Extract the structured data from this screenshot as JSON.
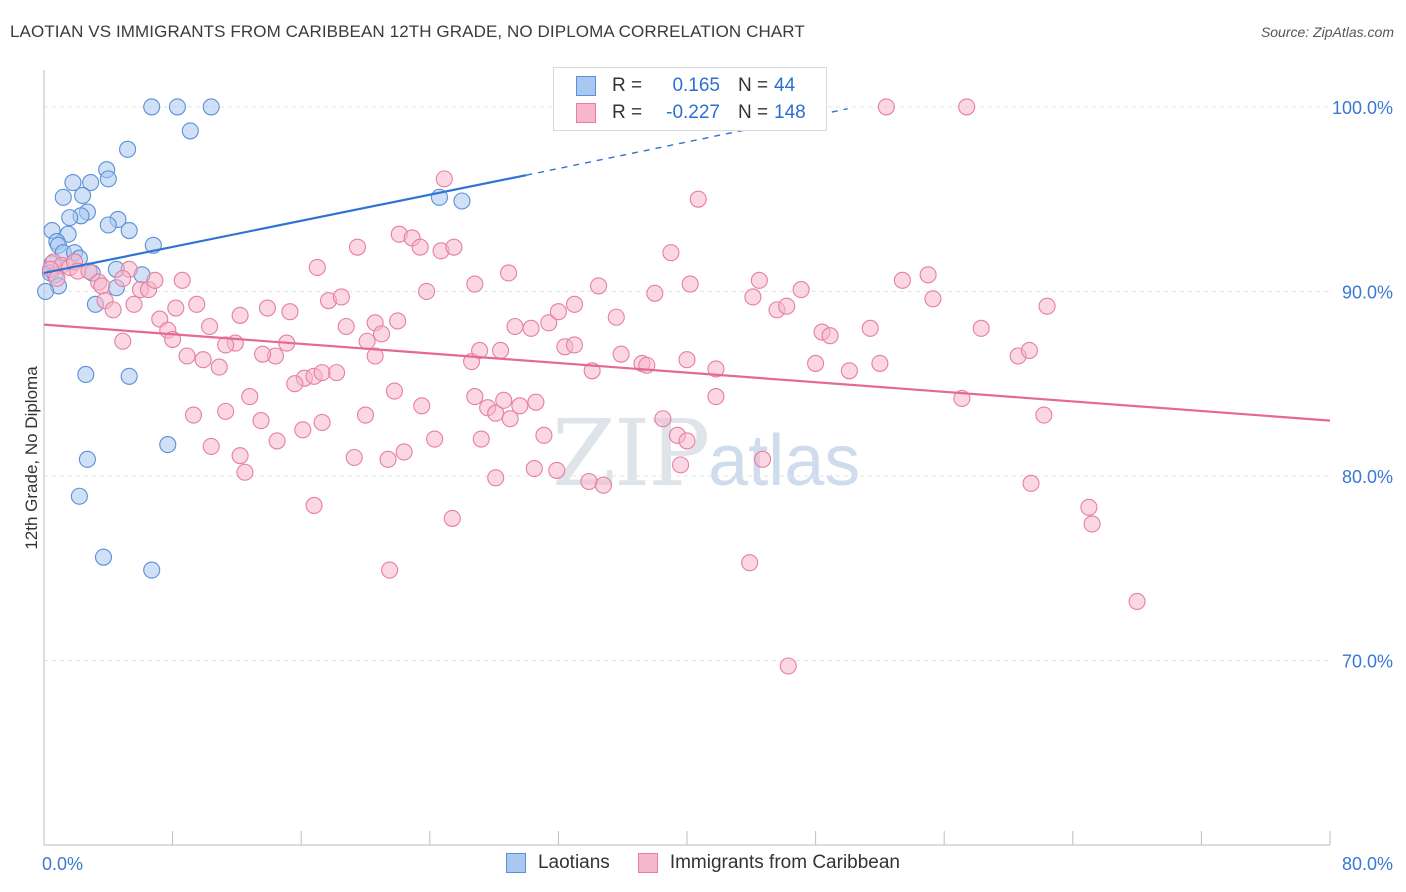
{
  "title": "LAOTIAN VS IMMIGRANTS FROM CARIBBEAN 12TH GRADE, NO DIPLOMA CORRELATION CHART",
  "source": "Source: ZipAtlas.com",
  "watermark": {
    "zip": "ZIP",
    "atlas": "atlas"
  },
  "legend_top": {
    "r_label": "R =",
    "n_label": "N =",
    "rows": [
      {
        "r": "0.165",
        "n": "44"
      },
      {
        "r": "-0.227",
        "n": "148"
      }
    ]
  },
  "colors": {
    "blue_fill": "#a9c8f0",
    "blue_stroke": "#5b8fd6",
    "blue_line": "#2f74d0",
    "pink_fill": "#f6b7cb",
    "pink_stroke": "#e67fa0",
    "pink_line": "#e46a93",
    "tick_text": "#3a78d4",
    "grid": "#e3e3e3"
  },
  "chart_data": {
    "type": "scatter",
    "title": "LAOTIAN VS IMMIGRANTS FROM CARIBBEAN 12TH GRADE, NO DIPLOMA CORRELATION CHART",
    "xlabel": "",
    "ylabel": "12th Grade, No Diploma",
    "xlim": [
      0,
      80
    ],
    "ylim": [
      60,
      102
    ],
    "x_tick_labels": [
      "0.0%",
      "80.0%"
    ],
    "y_ticks": [
      70,
      80,
      90,
      100
    ],
    "y_tick_labels": [
      "70.0%",
      "80.0%",
      "90.0%",
      "100.0%"
    ],
    "grid": true,
    "legend_position": "bottom",
    "series": [
      {
        "name": "Laotians",
        "r": 0.165,
        "n": 44,
        "trend": {
          "x0": 0,
          "y0": 91.0,
          "x1": 30,
          "y1": 96.3,
          "dashed_to_x": 50,
          "dashed_to_y": 99.9
        },
        "points": [
          [
            6.7,
            100
          ],
          [
            8.3,
            100
          ],
          [
            10.4,
            100
          ],
          [
            9.1,
            98.7
          ],
          [
            5.2,
            97.7
          ],
          [
            3.9,
            96.6
          ],
          [
            4.0,
            96.1
          ],
          [
            1.8,
            95.9
          ],
          [
            2.9,
            95.9
          ],
          [
            1.2,
            95.1
          ],
          [
            2.4,
            95.2
          ],
          [
            2.7,
            94.3
          ],
          [
            2.3,
            94.1
          ],
          [
            1.6,
            94.0
          ],
          [
            4.6,
            93.9
          ],
          [
            4.0,
            93.6
          ],
          [
            5.3,
            93.3
          ],
          [
            0.5,
            93.3
          ],
          [
            1.5,
            93.1
          ],
          [
            0.8,
            92.7
          ],
          [
            0.9,
            92.5
          ],
          [
            6.8,
            92.5
          ],
          [
            1.2,
            92.1
          ],
          [
            1.9,
            92.1
          ],
          [
            2.2,
            91.8
          ],
          [
            0.5,
            91.5
          ],
          [
            0.4,
            91.0
          ],
          [
            3.0,
            91.0
          ],
          [
            4.5,
            91.2
          ],
          [
            6.1,
            90.9
          ],
          [
            0.7,
            90.9
          ],
          [
            0.9,
            90.3
          ],
          [
            4.5,
            90.2
          ],
          [
            0.1,
            90.0
          ],
          [
            3.2,
            89.3
          ],
          [
            2.6,
            85.5
          ],
          [
            5.3,
            85.4
          ],
          [
            7.7,
            81.7
          ],
          [
            2.7,
            80.9
          ],
          [
            2.2,
            78.9
          ],
          [
            3.7,
            75.6
          ],
          [
            6.7,
            74.9
          ],
          [
            24.6,
            95.1
          ],
          [
            26.0,
            94.9
          ]
        ]
      },
      {
        "name": "Immigrants from Caribbean",
        "r": -0.227,
        "n": 148,
        "trend": {
          "x0": 0,
          "y0": 88.2,
          "x1": 80,
          "y1": 83.0
        },
        "points": [
          [
            52.4,
            100
          ],
          [
            57.4,
            100
          ],
          [
            24.9,
            96.1
          ],
          [
            40.7,
            95.0
          ],
          [
            0.6,
            91.6
          ],
          [
            1.1,
            91.4
          ],
          [
            1.6,
            91.3
          ],
          [
            0.4,
            91.2
          ],
          [
            1.9,
            91.6
          ],
          [
            2.1,
            91.1
          ],
          [
            2.8,
            91.1
          ],
          [
            0.8,
            90.7
          ],
          [
            3.4,
            90.5
          ],
          [
            3.6,
            90.3
          ],
          [
            5.3,
            91.2
          ],
          [
            4.9,
            90.7
          ],
          [
            6.0,
            90.1
          ],
          [
            6.5,
            90.1
          ],
          [
            6.9,
            90.6
          ],
          [
            8.6,
            90.6
          ],
          [
            3.8,
            89.5
          ],
          [
            4.3,
            89.0
          ],
          [
            5.6,
            89.3
          ],
          [
            8.2,
            89.1
          ],
          [
            9.5,
            89.3
          ],
          [
            7.2,
            88.5
          ],
          [
            7.7,
            87.9
          ],
          [
            10.3,
            88.1
          ],
          [
            12.2,
            88.7
          ],
          [
            13.9,
            89.1
          ],
          [
            15.3,
            88.9
          ],
          [
            17.7,
            89.5
          ],
          [
            18.5,
            89.7
          ],
          [
            11.9,
            87.2
          ],
          [
            8.0,
            87.4
          ],
          [
            4.9,
            87.3
          ],
          [
            8.9,
            86.5
          ],
          [
            9.9,
            86.3
          ],
          [
            10.9,
            85.9
          ],
          [
            11.3,
            87.1
          ],
          [
            14.4,
            86.5
          ],
          [
            15.1,
            87.2
          ],
          [
            16.2,
            85.3
          ],
          [
            15.6,
            85.0
          ],
          [
            16.8,
            85.4
          ],
          [
            17.3,
            85.6
          ],
          [
            18.2,
            85.6
          ],
          [
            18.8,
            88.1
          ],
          [
            20.6,
            88.3
          ],
          [
            21.0,
            87.7
          ],
          [
            20.1,
            87.3
          ],
          [
            20.6,
            86.5
          ],
          [
            22.0,
            88.4
          ],
          [
            22.1,
            93.1
          ],
          [
            22.9,
            92.9
          ],
          [
            23.4,
            92.4
          ],
          [
            24.7,
            92.2
          ],
          [
            25.5,
            92.4
          ],
          [
            23.8,
            90.0
          ],
          [
            17.0,
            91.3
          ],
          [
            19.5,
            92.4
          ],
          [
            26.8,
            90.4
          ],
          [
            28.9,
            91.0
          ],
          [
            31.4,
            88.3
          ],
          [
            32.0,
            88.9
          ],
          [
            33.0,
            89.3
          ],
          [
            34.5,
            90.3
          ],
          [
            35.6,
            88.6
          ],
          [
            35.9,
            86.6
          ],
          [
            37.2,
            86.1
          ],
          [
            37.5,
            86.0
          ],
          [
            38.0,
            89.9
          ],
          [
            39.0,
            92.1
          ],
          [
            40.0,
            86.3
          ],
          [
            40.2,
            90.4
          ],
          [
            41.8,
            85.8
          ],
          [
            44.1,
            89.7
          ],
          [
            44.5,
            90.6
          ],
          [
            45.6,
            89.0
          ],
          [
            46.2,
            89.2
          ],
          [
            47.1,
            90.1
          ],
          [
            48.0,
            86.1
          ],
          [
            48.4,
            87.8
          ],
          [
            48.9,
            87.6
          ],
          [
            50.1,
            85.7
          ],
          [
            51.4,
            88.0
          ],
          [
            52.0,
            86.1
          ],
          [
            53.4,
            90.6
          ],
          [
            55.0,
            90.9
          ],
          [
            55.3,
            89.6
          ],
          [
            57.1,
            84.2
          ],
          [
            58.3,
            88.0
          ],
          [
            60.6,
            86.5
          ],
          [
            61.3,
            86.8
          ],
          [
            62.4,
            89.2
          ],
          [
            62.2,
            83.3
          ],
          [
            29.3,
            88.1
          ],
          [
            30.3,
            88.0
          ],
          [
            28.4,
            86.8
          ],
          [
            32.4,
            87.0
          ],
          [
            30.6,
            84.0
          ],
          [
            33.0,
            87.1
          ],
          [
            34.1,
            85.7
          ],
          [
            26.6,
            86.2
          ],
          [
            27.1,
            86.8
          ],
          [
            26.8,
            84.3
          ],
          [
            27.6,
            83.7
          ],
          [
            28.1,
            83.4
          ],
          [
            28.6,
            84.1
          ],
          [
            29.0,
            83.1
          ],
          [
            29.6,
            83.8
          ],
          [
            27.2,
            82.0
          ],
          [
            31.1,
            82.2
          ],
          [
            30.5,
            80.4
          ],
          [
            31.9,
            80.3
          ],
          [
            33.9,
            79.7
          ],
          [
            34.8,
            79.5
          ],
          [
            38.5,
            83.1
          ],
          [
            39.4,
            82.2
          ],
          [
            39.6,
            80.6
          ],
          [
            40.0,
            81.9
          ],
          [
            41.8,
            84.3
          ],
          [
            20.0,
            83.3
          ],
          [
            21.8,
            84.6
          ],
          [
            23.5,
            83.8
          ],
          [
            24.3,
            82.0
          ],
          [
            22.4,
            81.3
          ],
          [
            21.4,
            80.9
          ],
          [
            16.1,
            82.5
          ],
          [
            17.3,
            82.9
          ],
          [
            12.8,
            84.3
          ],
          [
            13.5,
            83.0
          ],
          [
            13.6,
            86.6
          ],
          [
            11.3,
            83.5
          ],
          [
            9.3,
            83.3
          ],
          [
            10.4,
            81.6
          ],
          [
            12.2,
            81.1
          ],
          [
            12.5,
            80.2
          ],
          [
            14.5,
            81.9
          ],
          [
            16.8,
            78.4
          ],
          [
            19.3,
            81.0
          ],
          [
            25.4,
            77.7
          ],
          [
            43.9,
            75.3
          ],
          [
            44.7,
            80.9
          ],
          [
            61.4,
            79.6
          ],
          [
            65.0,
            78.3
          ],
          [
            65.2,
            77.4
          ],
          [
            68.0,
            73.2
          ],
          [
            46.3,
            69.7
          ],
          [
            21.5,
            74.9
          ],
          [
            28.1,
            79.9
          ]
        ]
      }
    ]
  }
}
